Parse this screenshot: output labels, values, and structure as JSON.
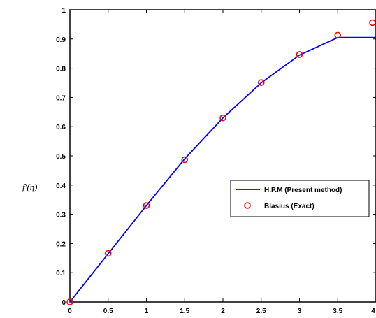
{
  "chart_data": {
    "type": "line",
    "title": "",
    "xlabel": "",
    "ylabel": "f'(η)",
    "xlim": [
      0,
      4
    ],
    "ylim": [
      0,
      1
    ],
    "x_ticks": [
      "0",
      "0.5",
      "1",
      "1.5",
      "2",
      "2.5",
      "3",
      "3.5",
      "4"
    ],
    "y_ticks": [
      "0",
      "0.1",
      "0.2",
      "0.3",
      "0.4",
      "0.5",
      "0.6",
      "0.7",
      "0.8",
      "0.9",
      "1"
    ],
    "grid": false,
    "legend_position": "right",
    "series": [
      {
        "name": "H.P.M (Present method)",
        "style": "line",
        "color": "#0000ff",
        "x": [
          0,
          0.5,
          1,
          1.5,
          2,
          2.5,
          3,
          3.5,
          4
        ],
        "y": [
          0,
          0.165,
          0.33,
          0.49,
          0.63,
          0.75,
          0.845,
          0.905,
          0.905
        ]
      },
      {
        "name": "Blasius (Exact)",
        "style": "marker",
        "marker": "circle",
        "color": "#ff0000",
        "x": [
          0,
          0.5,
          1,
          1.5,
          2,
          2.5,
          3,
          3.5,
          4
        ],
        "y": [
          0,
          0.166,
          0.33,
          0.487,
          0.63,
          0.751,
          0.847,
          0.913,
          0.956
        ]
      }
    ]
  }
}
